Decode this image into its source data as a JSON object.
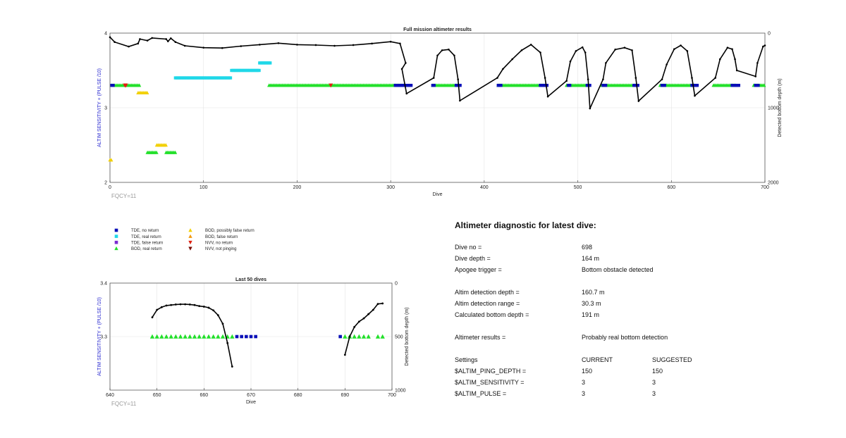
{
  "colors": {
    "tde_no": "#0a10b8",
    "tde_real": "#20d8e8",
    "tde_false": "#7a2bd0",
    "bod_real": "#22e02a",
    "bod_possibly_false": "#f2d000",
    "bod_false": "#f39a10",
    "nvv_no": "#e02010",
    "nvv_not_pinging": "#7a0a00",
    "axis_left": "#2a2ad0",
    "curve": "#000000"
  },
  "chart_data": [
    {
      "type": "scatter",
      "title": "Full mission altimeter results",
      "xlabel": "Dive",
      "ylabel": "ALTIM SENSITIVITY + (PULSE /10)",
      "y2label": "Detected bottom depth (m)",
      "annotation": "FQCY=11",
      "xlim": [
        0,
        700
      ],
      "ylim": [
        2,
        4
      ],
      "y2lim": [
        2000,
        0
      ],
      "xticks": [
        "0",
        "100",
        "200",
        "300",
        "400",
        "500",
        "600",
        "700"
      ],
      "yticks": [
        "2",
        "3",
        "4"
      ],
      "y2ticks": [
        "0",
        "1000",
        "2000"
      ],
      "grid": true,
      "series": [
        {
          "kind": "BOD real",
          "marker": "triangle-up",
          "color_key": "bod_real",
          "runs": [
            [
              2,
              32,
              3.3
            ],
            [
              170,
              315,
              3.3
            ],
            [
              345,
              372,
              3.3
            ],
            [
              415,
              465,
              3.3
            ],
            [
              488,
              512,
              3.3
            ],
            [
              525,
              562,
              3.3
            ],
            [
              588,
              625,
              3.3
            ],
            [
              645,
              670,
              3.3
            ],
            [
              688,
              700,
              3.3
            ],
            [
              40,
              50,
              2.4
            ],
            [
              60,
              70,
              2.4
            ]
          ]
        },
        {
          "kind": "TDE no return",
          "marker": "square",
          "color_key": "tde_no",
          "runs": [
            [
              2,
              4,
              3.3
            ],
            [
              305,
              322,
              3.3
            ],
            [
              345,
              347,
              3.3
            ],
            [
              370,
              375,
              3.3
            ],
            [
              415,
              418,
              3.3
            ],
            [
              460,
              468,
              3.3
            ],
            [
              490,
              492,
              3.3
            ],
            [
              510,
              513,
              3.3
            ],
            [
              527,
              530,
              3.3
            ],
            [
              560,
              565,
              3.3
            ],
            [
              590,
              593,
              3.3
            ],
            [
              622,
              628,
              3.3
            ],
            [
              665,
              672,
              3.3
            ],
            [
              690,
              693,
              3.3
            ]
          ]
        },
        {
          "kind": "TDE real return",
          "marker": "square",
          "color_key": "tde_real",
          "runs": [
            [
              70,
              130,
              3.4
            ],
            [
              130,
              160,
              3.5
            ],
            [
              160,
              172,
              3.6
            ]
          ]
        },
        {
          "kind": "BOD possibly false",
          "marker": "triangle-up",
          "color_key": "bod_possibly_false",
          "runs": [
            [
              30,
              40,
              3.2
            ],
            [
              50,
              60,
              2.5
            ],
            [
              0,
              2,
              2.3
            ]
          ]
        },
        {
          "kind": "NVV no return",
          "marker": "triangle-down",
          "color_key": "nvv_no",
          "points": [
            [
              16,
              3.3
            ],
            [
              17,
              3.3
            ],
            [
              236,
              3.3
            ]
          ]
        }
      ],
      "depth_curve": [
        [
          0,
          55
        ],
        [
          5,
          120
        ],
        [
          20,
          180
        ],
        [
          30,
          140
        ],
        [
          32,
          80
        ],
        [
          40,
          100
        ],
        [
          45,
          65
        ],
        [
          60,
          80
        ],
        [
          62,
          110
        ],
        [
          65,
          70
        ],
        [
          70,
          120
        ],
        [
          80,
          170
        ],
        [
          100,
          195
        ],
        [
          120,
          200
        ],
        [
          140,
          175
        ],
        [
          160,
          155
        ],
        [
          180,
          135
        ],
        [
          200,
          155
        ],
        [
          220,
          160
        ],
        [
          240,
          170
        ],
        [
          260,
          160
        ],
        [
          280,
          140
        ],
        [
          300,
          115
        ],
        [
          310,
          140
        ],
        [
          316,
          400
        ],
        [
          312,
          480
        ],
        [
          317,
          810
        ],
        [
          346,
          600
        ],
        [
          350,
          300
        ],
        [
          355,
          230
        ],
        [
          362,
          220
        ],
        [
          368,
          300
        ],
        [
          372,
          620
        ],
        [
          374,
          905
        ],
        [
          414,
          600
        ],
        [
          420,
          480
        ],
        [
          430,
          350
        ],
        [
          440,
          230
        ],
        [
          450,
          155
        ],
        [
          460,
          260
        ],
        [
          465,
          600
        ],
        [
          468,
          850
        ],
        [
          488,
          640
        ],
        [
          492,
          380
        ],
        [
          498,
          240
        ],
        [
          505,
          190
        ],
        [
          508,
          260
        ],
        [
          511,
          620
        ],
        [
          513,
          1010
        ],
        [
          527,
          620
        ],
        [
          530,
          400
        ],
        [
          540,
          220
        ],
        [
          550,
          195
        ],
        [
          558,
          230
        ],
        [
          562,
          600
        ],
        [
          565,
          910
        ],
        [
          590,
          620
        ],
        [
          595,
          420
        ],
        [
          603,
          215
        ],
        [
          610,
          165
        ],
        [
          617,
          240
        ],
        [
          622,
          600
        ],
        [
          625,
          840
        ],
        [
          647,
          600
        ],
        [
          652,
          350
        ],
        [
          660,
          195
        ],
        [
          665,
          215
        ],
        [
          668,
          350
        ],
        [
          670,
          500
        ],
        [
          690,
          580
        ],
        [
          692,
          400
        ],
        [
          698,
          180
        ],
        [
          700,
          165
        ]
      ]
    },
    {
      "type": "scatter",
      "title": "Last 50 dives",
      "xlabel": "Dive",
      "ylabel": "ALTIM SENSITIVITY + (PULSE /10)",
      "y2label": "Detected bottom depth (m)",
      "annotation": "FQCY=11",
      "xlim": [
        640,
        700
      ],
      "ylim": [
        3.2,
        3.4
      ],
      "y2lim": [
        1000,
        0
      ],
      "xticks": [
        "640",
        "650",
        "660",
        "670",
        "680",
        "690",
        "700"
      ],
      "yticks": [
        "3.3",
        "3.4"
      ],
      "y2ticks": [
        "0",
        "500",
        "1000"
      ],
      "grid": true,
      "bod_real_dives": [
        649,
        650,
        651,
        652,
        653,
        654,
        655,
        656,
        657,
        658,
        659,
        660,
        661,
        662,
        663,
        664,
        665,
        666,
        690,
        691,
        692,
        693,
        694,
        695,
        697,
        698
      ],
      "tde_no_dives": [
        667,
        668,
        669,
        670,
        671,
        689
      ],
      "depth_curve_a": [
        [
          649,
          320
        ],
        [
          650,
          250
        ],
        [
          651,
          225
        ],
        [
          652,
          210
        ],
        [
          653,
          205
        ],
        [
          654,
          200
        ],
        [
          655,
          198
        ],
        [
          656,
          198
        ],
        [
          657,
          200
        ],
        [
          658,
          205
        ],
        [
          659,
          215
        ],
        [
          660,
          220
        ],
        [
          661,
          230
        ],
        [
          662,
          255
        ],
        [
          663,
          300
        ],
        [
          664,
          380
        ],
        [
          665,
          560
        ],
        [
          666,
          780
        ]
      ],
      "depth_curve_b": [
        [
          690,
          670
        ],
        [
          691,
          500
        ],
        [
          692,
          410
        ],
        [
          693,
          360
        ],
        [
          694,
          330
        ],
        [
          695,
          290
        ],
        [
          696,
          250
        ],
        [
          697,
          195
        ],
        [
          698,
          190
        ]
      ]
    }
  ],
  "legend": [
    {
      "label": "TDE, no return",
      "marker": "square",
      "color_key": "tde_no"
    },
    {
      "label": "TDE, real return",
      "marker": "square",
      "color_key": "tde_real"
    },
    {
      "label": "TDE, false return",
      "marker": "square",
      "color_key": "tde_false"
    },
    {
      "label": "BOD, real return",
      "marker": "triangle-up",
      "color_key": "bod_real"
    },
    {
      "label": "BOD, possibly false return",
      "marker": "triangle-up",
      "color_key": "bod_possibly_false"
    },
    {
      "label": "BOD, false return",
      "marker": "triangle-up",
      "color_key": "bod_false"
    },
    {
      "label": "NVV, no return",
      "marker": "triangle-down",
      "color_key": "nvv_no"
    },
    {
      "label": "NVV, not pinging",
      "marker": "triangle-down",
      "color_key": "nvv_not_pinging"
    }
  ],
  "diagnostic": {
    "heading": "Altimeter diagnostic for latest dive:",
    "dive_no_label": "Dive no =",
    "dive_no": "698",
    "dive_depth_label": "Dive depth =",
    "dive_depth": "164 m",
    "apogee_label": "Apogee trigger =",
    "apogee": "Bottom obstacle detected",
    "detect_depth_label": "Altim detection depth =",
    "detect_depth": "160.7 m",
    "detect_range_label": "Altim detection range =",
    "detect_range": "30.3 m",
    "calc_depth_label": "Calculated bottom depth =",
    "calc_depth": "191 m",
    "results_label": "Altimeter results =",
    "results": "Probably real bottom detection",
    "settings_label": "Settings",
    "current_label": "CURRENT",
    "suggested_label": "SUGGESTED",
    "settings": [
      {
        "name": "$ALTIM_PING_DEPTH =",
        "current": "150",
        "suggested": "150"
      },
      {
        "name": "$ALTIM_SENSITIVITY =",
        "current": "3",
        "suggested": "3"
      },
      {
        "name": "$ALTIM_PULSE =",
        "current": "3",
        "suggested": "3"
      }
    ]
  }
}
